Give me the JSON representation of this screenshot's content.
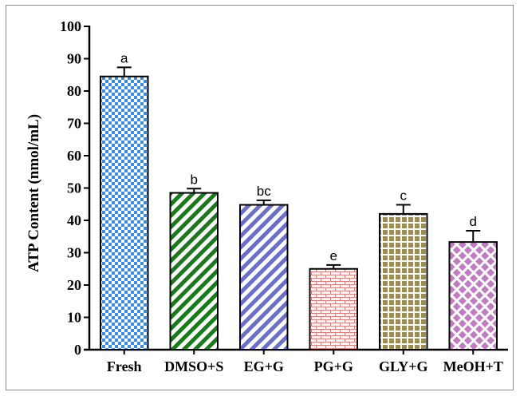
{
  "chart_data": {
    "type": "bar",
    "title": "",
    "xlabel": "",
    "ylabel": "ATP Content (nmol/mL)",
    "ylim": [
      0,
      100
    ],
    "yticks": [
      "0",
      "10",
      "20",
      "30",
      "40",
      "50",
      "60",
      "70",
      "80",
      "90",
      "100"
    ],
    "categories": [
      "Fresh",
      "DMSO+S",
      "EG+G",
      "PG+G",
      "GLY+G",
      "MeOH+T"
    ],
    "values": [
      84.5,
      48.5,
      44.8,
      25,
      42,
      33.3
    ],
    "errors": [
      2.8,
      1.3,
      1.4,
      1.2,
      2.8,
      3.5
    ],
    "significance": [
      "a",
      "b",
      "bc",
      "e",
      "c",
      "d"
    ],
    "bar_colors": [
      "#3a8ee6",
      "#1a7a1a",
      "#6b6fc9",
      "#e87a7a",
      "#9c8c4e",
      "#c27ac2"
    ],
    "bar_patterns": [
      "checker",
      "diagonal",
      "diagonal",
      "brick",
      "grid",
      "diamond"
    ],
    "grid": false
  }
}
